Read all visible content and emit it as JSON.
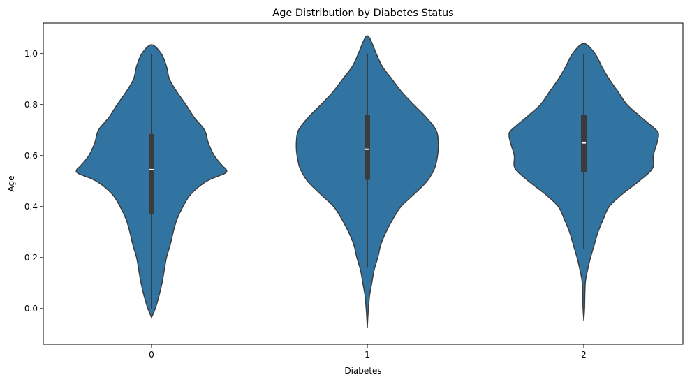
{
  "chart_data": {
    "type": "violin",
    "title": "Age Distribution by Diabetes Status",
    "xlabel": "Diabetes",
    "ylabel": "Age",
    "categories": [
      "0",
      "1",
      "2"
    ],
    "ylim": [
      -0.14,
      1.12
    ],
    "yticks": [
      0.0,
      0.2,
      0.4,
      0.6,
      0.8,
      1.0
    ],
    "ytick_labels": [
      "0.0",
      "0.2",
      "0.4",
      "0.6",
      "0.8",
      "1.0"
    ],
    "grid": false,
    "legend": "none",
    "colors": {
      "body": "#3274a1",
      "edge": "#3b3b3b",
      "box": "#3b3b3b",
      "median": "#ffffff"
    },
    "series": [
      {
        "category": "0",
        "box": {
          "whisker_low": 0.0,
          "q1": 0.37,
          "median": 0.545,
          "q3": 0.685,
          "whisker_high": 1.0
        },
        "density": [
          [
            -0.035,
            0.0
          ],
          [
            0.0,
            0.05
          ],
          [
            0.05,
            0.1
          ],
          [
            0.1,
            0.14
          ],
          [
            0.15,
            0.17
          ],
          [
            0.2,
            0.2
          ],
          [
            0.25,
            0.25
          ],
          [
            0.3,
            0.29
          ],
          [
            0.35,
            0.34
          ],
          [
            0.4,
            0.42
          ],
          [
            0.45,
            0.53
          ],
          [
            0.5,
            0.74
          ],
          [
            0.53,
            0.98
          ],
          [
            0.545,
            1.0
          ],
          [
            0.56,
            0.95
          ],
          [
            0.6,
            0.84
          ],
          [
            0.65,
            0.76
          ],
          [
            0.7,
            0.71
          ],
          [
            0.75,
            0.57
          ],
          [
            0.8,
            0.46
          ],
          [
            0.85,
            0.34
          ],
          [
            0.9,
            0.24
          ],
          [
            0.95,
            0.2
          ],
          [
            1.0,
            0.13
          ],
          [
            1.035,
            0.0
          ]
        ]
      },
      {
        "category": "1",
        "box": {
          "whisker_low": 0.16,
          "q1": 0.505,
          "median": 0.625,
          "q3": 0.76,
          "whisker_high": 1.0
        },
        "density": [
          [
            -0.075,
            0.0
          ],
          [
            -0.02,
            0.01
          ],
          [
            0.05,
            0.03
          ],
          [
            0.1,
            0.06
          ],
          [
            0.15,
            0.09
          ],
          [
            0.2,
            0.14
          ],
          [
            0.25,
            0.18
          ],
          [
            0.3,
            0.25
          ],
          [
            0.35,
            0.34
          ],
          [
            0.4,
            0.45
          ],
          [
            0.45,
            0.63
          ],
          [
            0.5,
            0.8
          ],
          [
            0.55,
            0.9
          ],
          [
            0.6,
            0.94
          ],
          [
            0.65,
            0.95
          ],
          [
            0.7,
            0.92
          ],
          [
            0.75,
            0.79
          ],
          [
            0.8,
            0.62
          ],
          [
            0.85,
            0.46
          ],
          [
            0.9,
            0.33
          ],
          [
            0.95,
            0.2
          ],
          [
            1.0,
            0.12
          ],
          [
            1.05,
            0.05
          ],
          [
            1.07,
            0.0
          ]
        ]
      },
      {
        "category": "2",
        "box": {
          "whisker_low": 0.235,
          "q1": 0.535,
          "median": 0.65,
          "q3": 0.76,
          "whisker_high": 1.0
        },
        "density": [
          [
            -0.045,
            0.0
          ],
          [
            0.0,
            0.01
          ],
          [
            0.1,
            0.02
          ],
          [
            0.15,
            0.05
          ],
          [
            0.2,
            0.09
          ],
          [
            0.25,
            0.14
          ],
          [
            0.3,
            0.19
          ],
          [
            0.35,
            0.26
          ],
          [
            0.4,
            0.34
          ],
          [
            0.45,
            0.52
          ],
          [
            0.5,
            0.74
          ],
          [
            0.55,
            0.92
          ],
          [
            0.6,
            0.93
          ],
          [
            0.65,
            0.98
          ],
          [
            0.68,
            1.0
          ],
          [
            0.7,
            0.97
          ],
          [
            0.75,
            0.77
          ],
          [
            0.8,
            0.58
          ],
          [
            0.85,
            0.46
          ],
          [
            0.9,
            0.34
          ],
          [
            0.95,
            0.24
          ],
          [
            1.0,
            0.15
          ],
          [
            1.04,
            0.0
          ]
        ]
      }
    ]
  }
}
